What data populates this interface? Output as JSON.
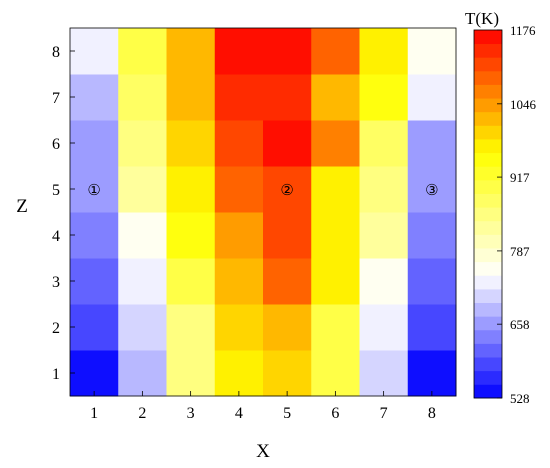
{
  "chart_data": {
    "type": "heatmap",
    "xlabel": "X",
    "ylabel": "Z",
    "colorbar_label": "T(K)",
    "x": [
      1,
      2,
      3,
      4,
      5,
      6,
      7,
      8
    ],
    "z": [
      1,
      2,
      3,
      4,
      5,
      6,
      7,
      8
    ],
    "x_tick_labels": [
      "1",
      "2",
      "3",
      "4",
      "5",
      "6",
      "7",
      "8"
    ],
    "z_tick_labels": [
      "1",
      "2",
      "3",
      "4",
      "5",
      "6",
      "7",
      "8"
    ],
    "values_by_row_z_from_bottom": [
      [
        540,
        690,
        840,
        970,
        990,
        905,
        700,
        540
      ],
      [
        590,
        700,
        860,
        1000,
        1010,
        905,
        720,
        580
      ],
      [
        610,
        730,
        900,
        1015,
        1090,
        960,
        760,
        600
      ],
      [
        630,
        760,
        940,
        1050,
        1120,
        975,
        820,
        630
      ],
      [
        650,
        830,
        960,
        1090,
        1110,
        970,
        840,
        650
      ],
      [
        660,
        850,
        990,
        1120,
        1176,
        1060,
        880,
        660
      ],
      [
        690,
        880,
        1010,
        1140,
        1150,
        1010,
        940,
        720
      ],
      [
        720,
        905,
        1020,
        1160,
        1176,
        1080,
        960,
        760
      ]
    ],
    "colorbar": {
      "min": 528,
      "max": 1176,
      "ticks": [
        1176,
        1046,
        917,
        787,
        658,
        528
      ],
      "tick_labels": [
        "1176",
        "1046",
        "917",
        "787",
        "658",
        "528"
      ],
      "levels": 27,
      "colors": [
        "#0000ff",
        "#ffffff",
        "#ffff00",
        "#ff0000"
      ]
    },
    "annotations": [
      {
        "text": "①",
        "x": 1,
        "z": 5
      },
      {
        "text": "②",
        "x": 5,
        "z": 5
      },
      {
        "text": "③",
        "x": 8,
        "z": 5
      }
    ],
    "legend": "colorbar-right",
    "grid": false
  }
}
